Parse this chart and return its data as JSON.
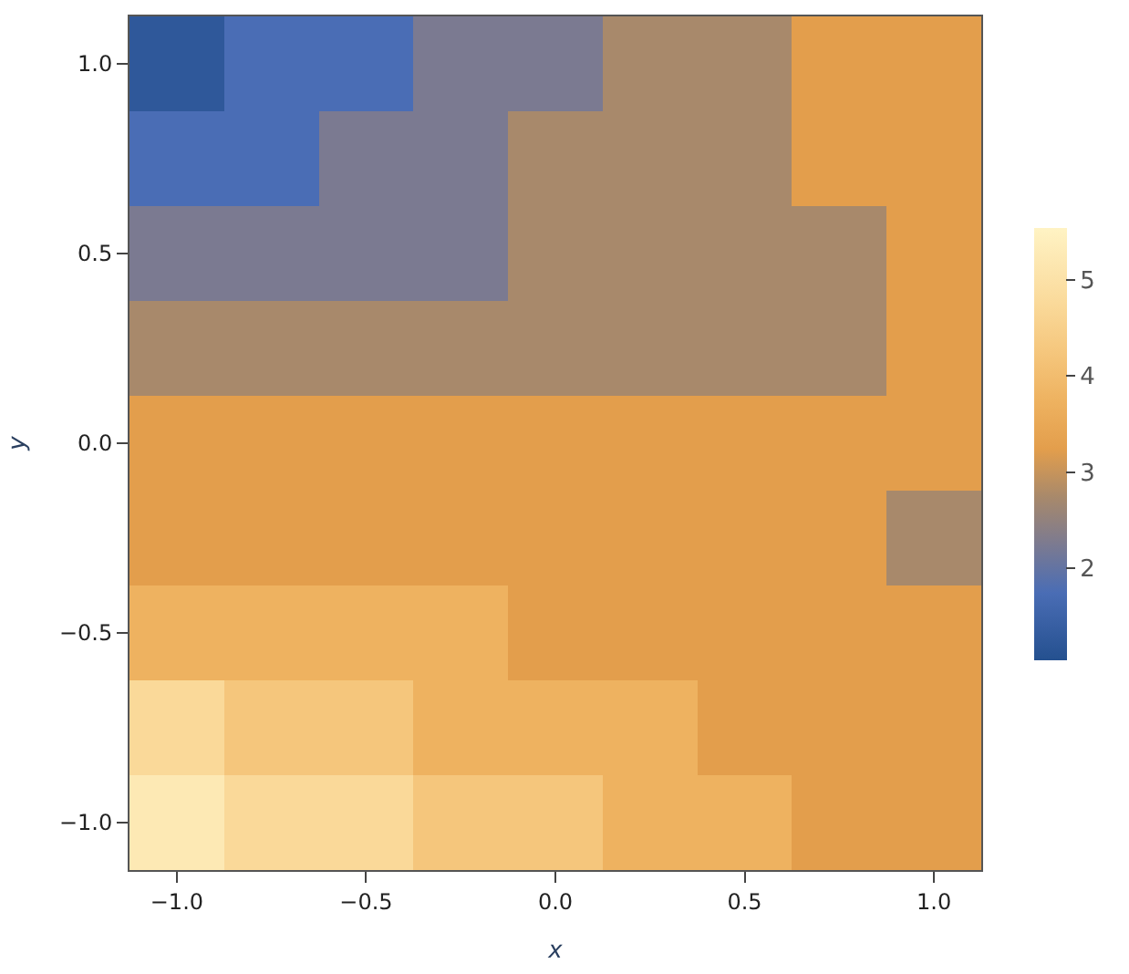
{
  "chart_data": {
    "type": "heatmap",
    "xlabel": "x",
    "ylabel": "y",
    "categories": [
      "−1.0",
      null,
      "−0.5",
      null,
      "0.0",
      null,
      "0.5",
      null,
      "1.0"
    ],
    "y_categories": [
      "1.0",
      null,
      "0.5",
      null,
      "0.0",
      null,
      "−0.5",
      null,
      "−1.0"
    ],
    "cells": [
      [
        1.25,
        1.75,
        1.75,
        2.25,
        2.25,
        2.75,
        2.75,
        3.25,
        3.25
      ],
      [
        1.75,
        1.75,
        2.25,
        2.25,
        2.75,
        2.75,
        2.75,
        3.25,
        3.25
      ],
      [
        2.25,
        2.25,
        2.25,
        2.25,
        2.75,
        2.75,
        2.75,
        2.75,
        3.25
      ],
      [
        2.75,
        2.75,
        2.75,
        2.75,
        2.75,
        2.75,
        2.75,
        2.75,
        3.25
      ],
      [
        3.25,
        3.25,
        3.25,
        3.25,
        3.25,
        3.25,
        3.25,
        3.25,
        3.25
      ],
      [
        3.25,
        3.25,
        3.25,
        3.25,
        3.25,
        3.25,
        3.25,
        3.25,
        2.75
      ],
      [
        3.75,
        3.75,
        3.75,
        3.75,
        3.25,
        3.25,
        3.25,
        3.25,
        3.25
      ],
      [
        4.75,
        4.25,
        4.25,
        3.75,
        3.75,
        3.75,
        3.25,
        3.25,
        3.25
      ],
      [
        5.25,
        4.75,
        4.75,
        4.25,
        4.25,
        3.75,
        3.75,
        3.25,
        3.25
      ]
    ],
    "clim": [
      1.05,
      5.55
    ],
    "cticks": [
      2,
      3,
      4,
      5
    ]
  }
}
